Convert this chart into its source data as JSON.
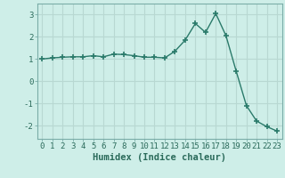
{
  "x": [
    0,
    1,
    2,
    3,
    4,
    5,
    6,
    7,
    8,
    9,
    10,
    11,
    12,
    13,
    14,
    15,
    16,
    17,
    18,
    19,
    20,
    21,
    22,
    23
  ],
  "y": [
    1.0,
    1.05,
    1.08,
    1.1,
    1.1,
    1.15,
    1.1,
    1.22,
    1.2,
    1.15,
    1.08,
    1.08,
    1.05,
    1.35,
    1.85,
    2.6,
    2.2,
    3.05,
    2.05,
    0.45,
    -1.1,
    -1.8,
    -2.05,
    -2.25
  ],
  "line_color": "#2a7a6a",
  "marker": "+",
  "marker_size": 5,
  "marker_lw": 1.2,
  "line_width": 1.0,
  "bg_color": "#ceeee8",
  "grid_color": "#b8d8d2",
  "xlabel": "Humidex (Indice chaleur)",
  "xlim": [
    -0.5,
    23.5
  ],
  "ylim": [
    -2.6,
    3.5
  ],
  "yticks": [
    -2,
    -1,
    0,
    1,
    2,
    3
  ],
  "xticks": [
    0,
    1,
    2,
    3,
    4,
    5,
    6,
    7,
    8,
    9,
    10,
    11,
    12,
    13,
    14,
    15,
    16,
    17,
    18,
    19,
    20,
    21,
    22,
    23
  ],
  "tick_fontsize": 6.5,
  "xlabel_fontsize": 7.5
}
